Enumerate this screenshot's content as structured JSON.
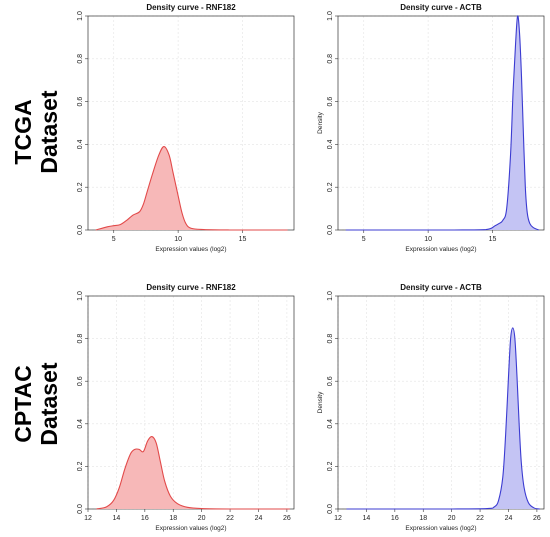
{
  "rows": [
    {
      "label_line1": "TCGA",
      "label_line2": "Dataset"
    },
    {
      "label_line1": "CPTAC",
      "label_line2": "Dataset"
    }
  ],
  "chart_data": [
    {
      "type": "area",
      "title": "Density curve - RNF182",
      "xlabel": "Expression values (log2)",
      "ylabel": "",
      "xlim": [
        3,
        19
      ],
      "ylim": [
        0,
        1.0
      ],
      "xticks": [
        5,
        10,
        15
      ],
      "yticks": [
        0.0,
        0.2,
        0.4,
        0.6,
        0.8,
        1.0
      ],
      "color": "#e24a4a",
      "fill": "#f7b8b8",
      "grid": true,
      "series": [
        {
          "x": [
            3.6,
            4.5,
            5.0,
            5.5,
            6.0,
            6.5,
            7.0,
            7.3,
            7.6,
            8.0,
            8.5,
            8.9,
            9.3,
            9.6,
            10.0,
            10.3,
            10.6,
            11.0,
            12.0,
            14.0,
            16.0,
            18.5
          ],
          "y": [
            0.0,
            0.015,
            0.02,
            0.025,
            0.045,
            0.07,
            0.085,
            0.12,
            0.18,
            0.26,
            0.35,
            0.39,
            0.35,
            0.27,
            0.16,
            0.08,
            0.03,
            0.008,
            0.002,
            0.0,
            0.0,
            0.0
          ]
        }
      ]
    },
    {
      "type": "area",
      "title": "Density curve - ACTB",
      "xlabel": "Expression values (log2)",
      "ylabel": "Density",
      "xlim": [
        3,
        19
      ],
      "ylim": [
        0,
        1.0
      ],
      "xticks": [
        5,
        10,
        15
      ],
      "yticks": [
        0.0,
        0.2,
        0.4,
        0.6,
        0.8,
        1.0
      ],
      "color": "#3b3bd1",
      "fill": "#c4c4f4",
      "grid": true,
      "series": [
        {
          "x": [
            3.6,
            8.0,
            12.0,
            14.5,
            15.2,
            15.5,
            15.8,
            16.1,
            16.4,
            16.6,
            16.8,
            16.95,
            17.1,
            17.25,
            17.4,
            17.55,
            17.7,
            17.9,
            18.2,
            18.6
          ],
          "y": [
            0.0,
            0.0,
            0.0,
            0.002,
            0.02,
            0.03,
            0.045,
            0.1,
            0.35,
            0.65,
            0.88,
            1.0,
            0.92,
            0.72,
            0.45,
            0.2,
            0.08,
            0.03,
            0.01,
            0.0
          ]
        }
      ]
    },
    {
      "type": "area",
      "title": "Density curve - RNF182",
      "xlabel": "Expression values (log2)",
      "ylabel": "",
      "xlim": [
        12,
        26.5
      ],
      "ylim": [
        0,
        1.0
      ],
      "xticks": [
        12,
        14,
        16,
        18,
        20,
        22,
        24,
        26
      ],
      "yticks": [
        0.0,
        0.2,
        0.4,
        0.6,
        0.8,
        1.0
      ],
      "color": "#e24a4a",
      "fill": "#f7b8b8",
      "grid": true,
      "series": [
        {
          "x": [
            12.6,
            13.3,
            13.8,
            14.2,
            14.6,
            15.0,
            15.3,
            15.6,
            15.9,
            16.2,
            16.5,
            16.8,
            17.1,
            17.4,
            17.8,
            18.3,
            19.0,
            20.0,
            22.0,
            26.2
          ],
          "y": [
            0.0,
            0.01,
            0.04,
            0.1,
            0.19,
            0.26,
            0.28,
            0.28,
            0.27,
            0.32,
            0.34,
            0.31,
            0.22,
            0.13,
            0.06,
            0.025,
            0.008,
            0.002,
            0.0,
            0.0
          ]
        }
      ]
    },
    {
      "type": "area",
      "title": "Density curve - ACTB",
      "xlabel": "Expression values (log2)",
      "ylabel": "Density",
      "xlim": [
        12,
        26.5
      ],
      "ylim": [
        0,
        1.0
      ],
      "xticks": [
        12,
        14,
        16,
        18,
        20,
        22,
        24,
        26
      ],
      "yticks": [
        0.0,
        0.2,
        0.4,
        0.6,
        0.8,
        1.0
      ],
      "color": "#3b3bd1",
      "fill": "#c4c4f4",
      "grid": true,
      "series": [
        {
          "x": [
            12.6,
            16.0,
            20.0,
            22.5,
            23.0,
            23.3,
            23.6,
            23.8,
            24.0,
            24.15,
            24.3,
            24.45,
            24.6,
            24.75,
            24.9,
            25.1,
            25.4,
            25.8,
            26.2
          ],
          "y": [
            0.0,
            0.0,
            0.0,
            0.002,
            0.01,
            0.04,
            0.15,
            0.35,
            0.62,
            0.8,
            0.85,
            0.8,
            0.62,
            0.4,
            0.22,
            0.1,
            0.03,
            0.005,
            0.0
          ]
        }
      ]
    }
  ]
}
